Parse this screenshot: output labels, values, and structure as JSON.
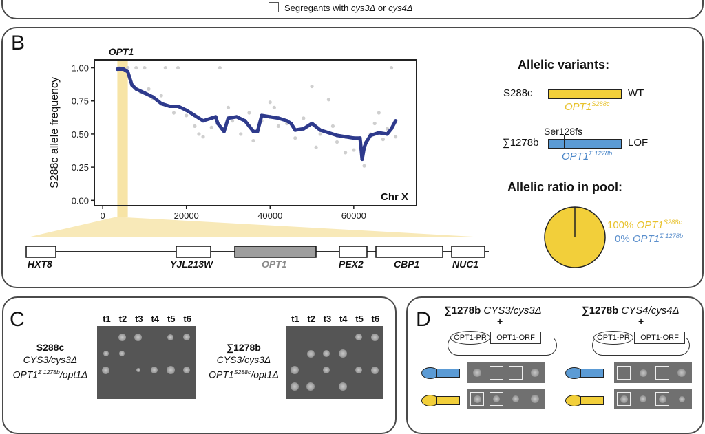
{
  "panel_a_tail": {
    "legend_label_prefix": "Segregants with ",
    "legend_gene1": "cys3Δ",
    "legend_mid": " or ",
    "legend_gene2": "cys4Δ"
  },
  "panel_b": {
    "letter": "B",
    "highlight_label": "OPT1",
    "chrom_label": "Chr X",
    "genes": [
      "HXT8",
      "YJL213W",
      "OPT1",
      "PEX2",
      "CBP1",
      "NUC1"
    ],
    "allelic_variants": {
      "title": "Allelic variants:",
      "s288c": {
        "strain": "S288c",
        "status": "WT",
        "allele": "OPT1",
        "allele_sup": "S288c"
      },
      "sigma": {
        "strain": "∑1278b",
        "status": "LOF",
        "mutation": "Ser128fs",
        "allele": "OPT1",
        "allele_sup": "Σ 1278b"
      }
    },
    "allelic_ratio": {
      "title": "Allelic ratio in pool:",
      "s288c_pct": "100%",
      "s288c_allele": "OPT1",
      "s288c_sup": "S288c",
      "sigma_pct": "0%",
      "sigma_allele": "OPT1",
      "sigma_sup": "Σ 1278b"
    },
    "colors": {
      "s288c": "#f2cf3a",
      "sigma": "#5b9bd5",
      "highlight": "#f7e4a6",
      "trend": "#2e3a8c",
      "raw": "#cfcfcf"
    }
  },
  "chart_data": {
    "type": "scatter",
    "title": "",
    "xlabel": "",
    "ylabel": "S288c allele frequency",
    "xlim": [
      -2000,
      75000
    ],
    "ylim": [
      -0.04,
      1.06
    ],
    "xticks": [
      0,
      20000,
      40000,
      60000
    ],
    "xtick_labels": [
      "0",
      "20000",
      "40000",
      "60000"
    ],
    "yticks": [
      0,
      0.25,
      0.5,
      0.75,
      1.0
    ],
    "ytick_labels": [
      "0.00",
      "0.25",
      "0.50",
      "0.75",
      "1.00"
    ],
    "annotation": "Chr X",
    "highlight_region": {
      "label": "OPT1",
      "x": [
        3500,
        6000
      ]
    },
    "series": [
      {
        "name": "smoothed S288c allele frequency",
        "x": [
          3500,
          5000,
          6000,
          7000,
          8000,
          10000,
          12000,
          14000,
          16000,
          18000,
          20000,
          22000,
          24000,
          26000,
          27000,
          27500,
          28500,
          29000,
          30000,
          32000,
          34000,
          35000,
          36000,
          37000,
          38000,
          40000,
          42000,
          44000,
          45000,
          46000,
          48000,
          50000,
          52000,
          54000,
          56000,
          58000,
          60000,
          61500,
          62000,
          62500,
          63000,
          64000,
          66000,
          68000,
          69000,
          70000
        ],
        "y": [
          0.99,
          0.99,
          0.97,
          0.87,
          0.84,
          0.81,
          0.78,
          0.73,
          0.71,
          0.71,
          0.68,
          0.64,
          0.6,
          0.62,
          0.63,
          0.58,
          0.54,
          0.52,
          0.62,
          0.63,
          0.6,
          0.56,
          0.52,
          0.52,
          0.64,
          0.63,
          0.62,
          0.6,
          0.58,
          0.53,
          0.54,
          0.58,
          0.53,
          0.51,
          0.49,
          0.48,
          0.47,
          0.47,
          0.31,
          0.4,
          0.44,
          0.49,
          0.51,
          0.5,
          0.54,
          0.6
        ]
      },
      {
        "name": "raw allele frequency",
        "x": [
          4000,
          6000,
          8000,
          9000,
          10000,
          11000,
          12000,
          14000,
          15000,
          17000,
          18000,
          20000,
          22000,
          23000,
          24000,
          26000,
          28000,
          30000,
          31000,
          33000,
          35000,
          36000,
          38000,
          40000,
          41000,
          42000,
          44000,
          46000,
          48000,
          50000,
          51000,
          52000,
          54000,
          55000,
          56000,
          58000,
          60000,
          62500,
          64000,
          65000,
          66000,
          67000,
          68000,
          69000,
          70000
        ],
        "y": [
          1.0,
          1.0,
          1.0,
          0.82,
          1.0,
          0.84,
          0.77,
          0.79,
          1.0,
          0.66,
          1.0,
          0.64,
          0.56,
          0.5,
          0.48,
          0.55,
          1.0,
          0.7,
          0.6,
          0.5,
          0.66,
          0.45,
          0.6,
          0.74,
          0.7,
          0.56,
          0.58,
          0.47,
          0.62,
          0.86,
          0.4,
          0.5,
          0.76,
          0.56,
          0.44,
          0.36,
          0.38,
          0.26,
          0.5,
          0.58,
          0.66,
          0.46,
          0.54,
          1.0,
          0.48
        ]
      }
    ]
  },
  "panel_c": {
    "letter": "C",
    "time_labels": [
      "t1",
      "t2",
      "t3",
      "t4",
      "t5",
      "t6"
    ],
    "left_strain": {
      "name": "S288c",
      "line2": "CYS3/cys3Δ",
      "line3_allele": "OPT1",
      "line3_sup": "Σ 1278b",
      "line3_rest": "/opt1Δ"
    },
    "right_strain": {
      "name": "∑1278b",
      "line2": "CYS3/cys3Δ",
      "line3_allele": "OPT1",
      "line3_sup": "S288c",
      "line3_rest": "/opt1Δ"
    }
  },
  "panel_d": {
    "letter": "D",
    "left_title_bold": "∑1278b ",
    "left_title_it": "CYS3/cys3Δ",
    "right_title_bold": "∑1278b ",
    "right_title_it": "CYS4/cys4Δ",
    "plus": "+",
    "promoter_label": "OPT1-PR",
    "orf_label": "OPT1-ORF"
  }
}
